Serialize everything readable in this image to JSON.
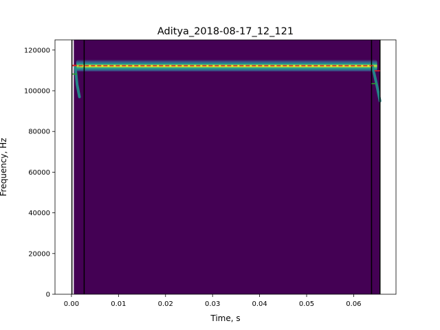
{
  "chart_data": {
    "type": "heatmap",
    "title": "Aditya_2018-08-17_12_121",
    "xlabel": "Time, s",
    "ylabel": "Frequency, Hz",
    "xlim": [
      -0.0035,
      0.069
    ],
    "ylim": [
      0,
      125000
    ],
    "x_ticks": [
      0.0,
      0.01,
      0.02,
      0.03,
      0.04,
      0.05,
      0.06
    ],
    "x_tick_labels": [
      "0.00",
      "0.01",
      "0.02",
      "0.03",
      "0.04",
      "0.05",
      "0.06"
    ],
    "y_ticks": [
      0,
      20000,
      40000,
      60000,
      80000,
      100000,
      120000
    ],
    "y_tick_labels": [
      "0",
      "20000",
      "40000",
      "60000",
      "80000",
      "100000",
      "120000"
    ],
    "grid": false,
    "spectrogram_extent": {
      "t_start": 0.0005,
      "t_end": 0.0655,
      "f_min": 0,
      "f_max": 125000
    },
    "background_color": "#440154",
    "call_band": {
      "center_hz": 112000,
      "t_start": 0.001,
      "t_end": 0.065,
      "colors": [
        "#440154",
        "#3b528b",
        "#21918c",
        "#5ec962",
        "#fde725"
      ]
    },
    "start_sweep": {
      "t": [
        0.0008,
        0.0012,
        0.0017
      ],
      "f": [
        112000,
        103000,
        97000
      ]
    },
    "end_sweep": {
      "t": [
        0.064,
        0.0648,
        0.0656
      ],
      "f": [
        112000,
        104000,
        95000
      ]
    },
    "vertical_lines": [
      {
        "x": 0.0001,
        "color": "#000000"
      },
      {
        "x": 0.0027,
        "color": "#000000"
      },
      {
        "x": 0.0638,
        "color": "#000000"
      },
      {
        "x": 0.0656,
        "color": "#000000"
      }
    ],
    "series": [
      {
        "type": "line",
        "style": "dashed",
        "color": "#d62728",
        "x": [
          0.0002,
          0.0644
        ],
        "y": [
          112300,
          112300
        ]
      },
      {
        "type": "line",
        "style": "solid",
        "color": "#d62728",
        "x": [
          0.0644,
          0.0656
        ],
        "y": [
          109800,
          109800
        ]
      },
      {
        "type": "line",
        "style": "solid",
        "color": "#d62728",
        "x": [
          0.0002,
          0.0012
        ],
        "y": [
          112500,
          112500
        ]
      },
      {
        "type": "line",
        "style": "solid",
        "color": "#2ca02c",
        "x": [
          0.0002,
          0.0012
        ],
        "y": [
          108200,
          108200
        ]
      },
      {
        "type": "line",
        "style": "solid",
        "color": "#2ca02c",
        "x": [
          0.0638,
          0.0648
        ],
        "y": [
          103500,
          103500
        ]
      }
    ]
  }
}
